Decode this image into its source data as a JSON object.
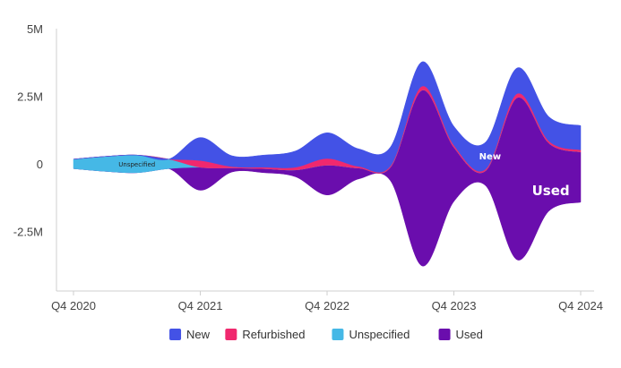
{
  "chart_data": {
    "type": "area",
    "subtype": "streamgraph",
    "title": "",
    "xlabel": "",
    "ylabel": "",
    "x_ticks": [
      "Q4 2020",
      "Q4 2021",
      "Q4 2022",
      "Q4 2023",
      "Q4 2024"
    ],
    "y_ticks": [
      {
        "value": 5000000,
        "label": "5M"
      },
      {
        "value": 2500000,
        "label": "2.5M"
      },
      {
        "value": 0,
        "label": "0"
      },
      {
        "value": -2500000,
        "label": "-2.5M"
      }
    ],
    "ylim": [
      -4700000,
      5000000
    ],
    "x": [
      "Q4 2020",
      "Q1 2021",
      "Q2 2021",
      "Q3 2021",
      "Q4 2021",
      "Q1 2022",
      "Q2 2022",
      "Q3 2022",
      "Q4 2022",
      "Q1 2023",
      "Q2 2023",
      "Q3 2023",
      "Q4 2023",
      "Q1 2024",
      "Q2 2024",
      "Q3 2024",
      "Q4 2024"
    ],
    "series": [
      {
        "name": "Used",
        "color": "#6a0dad",
        "values": [
          0,
          0,
          0,
          0,
          850000,
          150000,
          150000,
          250000,
          1100000,
          400000,
          500000,
          6500000,
          2000000,
          550000,
          6000000,
          2500000,
          1850000
        ]
      },
      {
        "name": "Unspecified",
        "color": "#45b8e6",
        "values": [
          350000,
          550000,
          650000,
          350000,
          0,
          0,
          0,
          0,
          0,
          0,
          0,
          0,
          0,
          0,
          0,
          0,
          0
        ]
      },
      {
        "name": "Refurbished",
        "color": "#f0286e",
        "values": [
          0,
          0,
          0,
          0,
          250000,
          50000,
          50000,
          100000,
          250000,
          60000,
          50000,
          150000,
          80000,
          60000,
          150000,
          80000,
          80000
        ]
      },
      {
        "name": "New",
        "color": "#4352e6",
        "values": [
          0,
          0,
          0,
          0,
          850000,
          400000,
          450000,
          600000,
          950000,
          650000,
          700000,
          900000,
          700000,
          1000000,
          950000,
          900000,
          900000
        ]
      }
    ],
    "stack_order": [
      "Used",
      "Unspecified",
      "Refurbished",
      "New"
    ],
    "annotations": [
      {
        "text": "Unspecified",
        "series": "Unspecified"
      },
      {
        "text": "New",
        "series": "New"
      },
      {
        "text": "Used",
        "series": "Used"
      }
    ],
    "legend": {
      "position": "bottom",
      "items": [
        {
          "name": "New",
          "color": "#4352e6"
        },
        {
          "name": "Refurbished",
          "color": "#f0286e"
        },
        {
          "name": "Unspecified",
          "color": "#45b8e6"
        },
        {
          "name": "Used",
          "color": "#6a0dad"
        }
      ]
    },
    "grid": false
  }
}
